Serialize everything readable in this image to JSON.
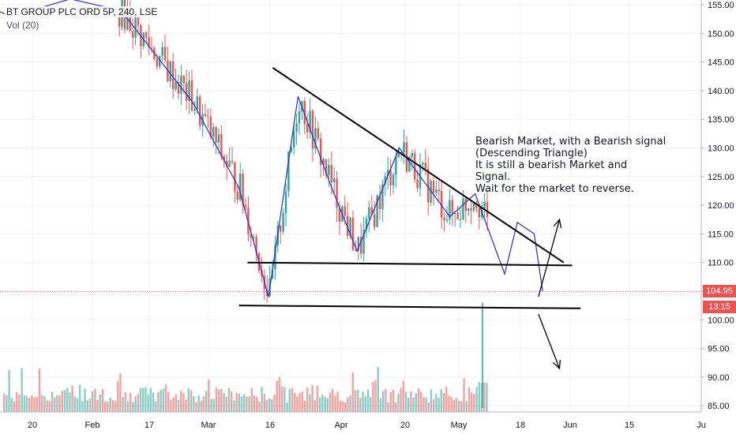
{
  "chart_title": "BT GROUP PLC ORD 5P, 240, LSE",
  "volume_label": "Vol (20)",
  "current_price_label": "104.95",
  "countdown_label": "13:15",
  "annotation_lines": [
    "Bearish Market, with a Bearish signal",
    "(Descending Triangle)",
    "It is still a bearish Market and",
    "Signal.",
    "Wait for the market to reverse."
  ],
  "colors": {
    "up": "#26a69a",
    "down": "#ef5350",
    "wave_line": "#2a2ad8",
    "trend_line": "#000000",
    "price_tag": "#ef5350",
    "countdown_tag": "#ef5350",
    "grid": "#eef0f3"
  },
  "chart_data": {
    "type": "candlestick",
    "title": "BT GROUP PLC ORD 5P, 240, LSE",
    "y_ticks": [
      "85.00",
      "90.00",
      "95.00",
      "100.00",
      "105.00",
      "110.00",
      "115.00",
      "120.00",
      "125.00",
      "130.00",
      "135.00",
      "140.00",
      "145.00",
      "150.00",
      "155.00"
    ],
    "ylim": [
      84.5,
      156.5
    ],
    "x_ticks": [
      "20",
      "Feb",
      "17",
      "Mar",
      "16",
      "Apr",
      "20",
      "May",
      "18",
      "Jun",
      "15",
      "Ju"
    ],
    "last_price": 104.95,
    "price_path": [
      {
        "date": "2020-01-08",
        "price": 155
      },
      {
        "date": "2020-01-15",
        "price": 153
      },
      {
        "date": "2020-01-29",
        "price": 156
      },
      {
        "date": "2020-02-10",
        "price": 154
      },
      {
        "date": "2020-02-27",
        "price": 138
      },
      {
        "date": "2020-03-09",
        "price": 123
      },
      {
        "date": "2020-03-16",
        "price": 104
      },
      {
        "date": "2020-03-23",
        "price": 139
      },
      {
        "date": "2020-03-31",
        "price": 123
      },
      {
        "date": "2020-04-06",
        "price": 112
      },
      {
        "date": "2020-04-16",
        "price": 130
      },
      {
        "date": "2020-04-28",
        "price": 118
      },
      {
        "date": "2020-05-04",
        "price": 122
      },
      {
        "date": "2020-05-11",
        "price": 108
      },
      {
        "date": "2020-05-14",
        "price": 117
      },
      {
        "date": "2020-05-18",
        "price": 115
      },
      {
        "date": "2020-05-20",
        "price": 105
      }
    ],
    "drawings": {
      "descending_trendline": [
        {
          "date": "2020-03-17",
          "price": 144
        },
        {
          "date": "2020-05-25",
          "price": 110
        }
      ],
      "support_line_upper": [
        {
          "date": "2020-03-11",
          "price": 110
        },
        {
          "date": "2020-05-27",
          "price": 109.5
        }
      ],
      "support_line_lower": [
        {
          "date": "2020-03-09",
          "price": 102.5
        },
        {
          "date": "2020-05-29",
          "price": 102
        }
      ],
      "arrow_up": [
        {
          "date": "2020-05-19",
          "price": 104
        },
        {
          "date": "2020-05-24",
          "price": 117.5
        }
      ],
      "arrow_down": [
        {
          "date": "2020-05-19",
          "price": 101
        },
        {
          "date": "2020-05-24",
          "price": 91.5
        }
      ]
    },
    "volume_series": "Vol (20)",
    "grid": true
  }
}
